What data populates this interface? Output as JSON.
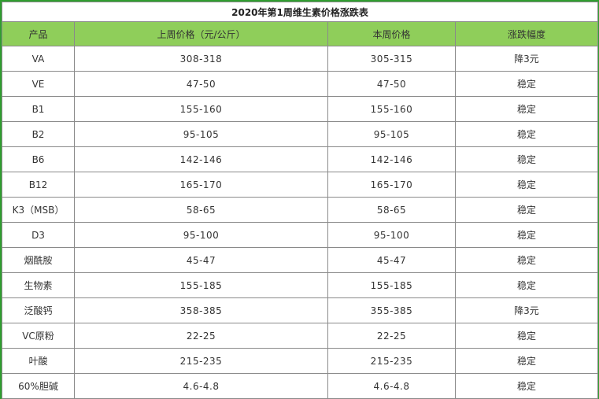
{
  "table": {
    "title": "2020年第1周维生素价格涨跌表",
    "headers": [
      "产品",
      "上周价格（元/公斤）",
      "本周价格",
      "涨跌幅度"
    ],
    "rows": [
      {
        "product": "VA",
        "last_week": "308-318",
        "this_week": "305-315",
        "change": "降3元"
      },
      {
        "product": "VE",
        "last_week": "47-50",
        "this_week": "47-50",
        "change": "稳定"
      },
      {
        "product": "B1",
        "last_week": "155-160",
        "this_week": "155-160",
        "change": "稳定"
      },
      {
        "product": "B2",
        "last_week": "95-105",
        "this_week": "95-105",
        "change": "稳定"
      },
      {
        "product": "B6",
        "last_week": "142-146",
        "this_week": "142-146",
        "change": "稳定"
      },
      {
        "product": "B12",
        "last_week": "165-170",
        "this_week": "165-170",
        "change": "稳定"
      },
      {
        "product": "K3（MSB）",
        "last_week": "58-65",
        "this_week": "58-65",
        "change": "稳定"
      },
      {
        "product": "D3",
        "last_week": "95-100",
        "this_week": "95-100",
        "change": "稳定"
      },
      {
        "product": "烟酰胺",
        "last_week": "45-47",
        "this_week": "45-47",
        "change": "稳定"
      },
      {
        "product": "生物素",
        "last_week": "155-185",
        "this_week": "155-185",
        "change": "稳定"
      },
      {
        "product": "泛酸钙",
        "last_week": "358-385",
        "this_week": "355-385",
        "change": "降3元"
      },
      {
        "product": "VC原粉",
        "last_week": "22-25",
        "this_week": "22-25",
        "change": "稳定"
      },
      {
        "product": "叶酸",
        "last_week": "215-235",
        "this_week": "215-235",
        "change": "稳定"
      },
      {
        "product": "60%胆碱",
        "last_week": "4.6-4.8",
        "this_week": "4.6-4.8",
        "change": "稳定"
      }
    ]
  },
  "colors": {
    "header_bg": "#8fce5a",
    "frame": "#2f9e2f"
  }
}
